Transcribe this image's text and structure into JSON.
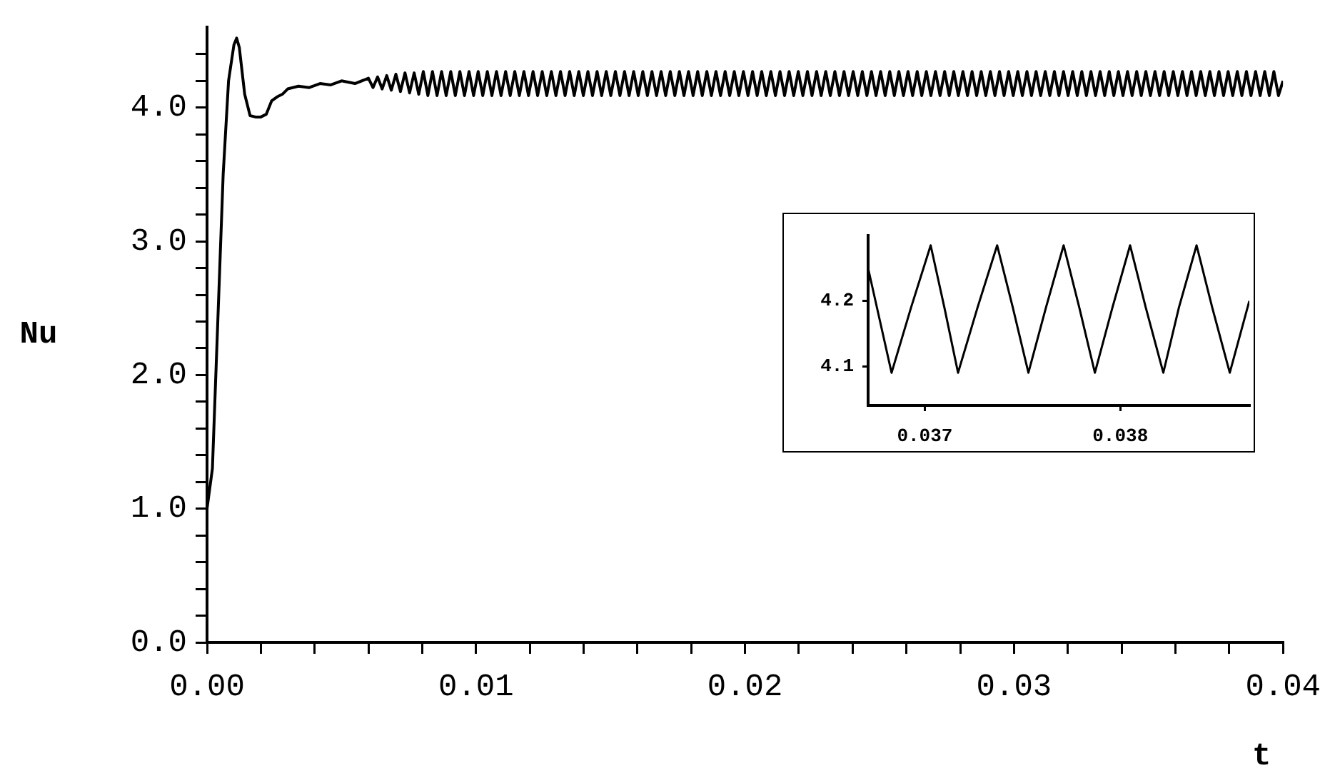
{
  "chart_data": [
    {
      "type": "line",
      "xlabel": "t",
      "ylabel": "Nu",
      "marker": "none",
      "xlim": [
        0,
        0.04
      ],
      "ylim": [
        0,
        4.6
      ],
      "xticks": [
        {
          "value": 0,
          "label": "0.00"
        },
        {
          "value": 0.002,
          "label": null
        },
        {
          "value": 0.004,
          "label": null
        },
        {
          "value": 0.006,
          "label": null
        },
        {
          "value": 0.008,
          "label": null
        },
        {
          "value": 0.01,
          "label": "0.01"
        },
        {
          "value": 0.012,
          "label": null
        },
        {
          "value": 0.014,
          "label": null
        },
        {
          "value": 0.016,
          "label": null
        },
        {
          "value": 0.018,
          "label": null
        },
        {
          "value": 0.02,
          "label": "0.02"
        },
        {
          "value": 0.022,
          "label": null
        },
        {
          "value": 0.024,
          "label": null
        },
        {
          "value": 0.026,
          "label": null
        },
        {
          "value": 0.028,
          "label": null
        },
        {
          "value": 0.03,
          "label": "0.03"
        },
        {
          "value": 0.032,
          "label": null
        },
        {
          "value": 0.034,
          "label": null
        },
        {
          "value": 0.036,
          "label": null
        },
        {
          "value": 0.038,
          "label": null
        },
        {
          "value": 0.04,
          "label": "0.04"
        }
      ],
      "yticks": [
        {
          "value": 0,
          "label": "0.0"
        },
        {
          "value": 0.2,
          "label": null
        },
        {
          "value": 0.4,
          "label": null
        },
        {
          "value": 0.6,
          "label": null
        },
        {
          "value": 0.8,
          "label": null
        },
        {
          "value": 1,
          "label": "1.0"
        },
        {
          "value": 1.2,
          "label": null
        },
        {
          "value": 1.4,
          "label": null
        },
        {
          "value": 1.6,
          "label": null
        },
        {
          "value": 1.8,
          "label": null
        },
        {
          "value": 2,
          "label": "2.0"
        },
        {
          "value": 2.2,
          "label": null
        },
        {
          "value": 2.4,
          "label": null
        },
        {
          "value": 2.6,
          "label": null
        },
        {
          "value": 2.8,
          "label": null
        },
        {
          "value": 3,
          "label": "3.0"
        },
        {
          "value": 3.2,
          "label": null
        },
        {
          "value": 3.4,
          "label": null
        },
        {
          "value": 3.6,
          "label": null
        },
        {
          "value": 3.8,
          "label": null
        },
        {
          "value": 4,
          "label": "4.0"
        },
        {
          "value": 4.2,
          "label": null
        },
        {
          "value": 4.4,
          "label": null
        }
      ],
      "series": [
        {
          "color": "#000000",
          "x": [
            0,
            0.0002,
            0.0004,
            0.0006,
            0.0008,
            0.001,
            0.0011,
            0.0012,
            0.0014,
            0.0016,
            0.0018,
            0.002,
            0.0022,
            0.0024,
            0.0026,
            0.0028,
            0.003,
            0.0034,
            0.0038,
            0.0042,
            0.0046,
            0.005,
            0.0055,
            0.006,
            0.00617,
            0.00634,
            0.00651,
            0.00668,
            0.00685,
            0.00702,
            0.00719,
            0.00736,
            0.00753,
            0.0077,
            0.00787,
            0.00804,
            0.00821,
            0.00838,
            0.00855,
            0.00872,
            0.00889,
            0.00906,
            0.00923,
            0.0094,
            0.00957,
            0.00974,
            0.00991,
            0.01008,
            0.01025,
            0.01042,
            0.01059,
            0.01076,
            0.01093,
            0.0111,
            0.01127,
            0.01144,
            0.01161,
            0.01178,
            0.01195,
            0.01212,
            0.01229,
            0.01246,
            0.01263,
            0.0128,
            0.01297,
            0.01314,
            0.01331,
            0.01348,
            0.01365,
            0.01382,
            0.01399,
            0.01416,
            0.01433,
            0.0145,
            0.01467,
            0.01484,
            0.01501,
            0.01518,
            0.01535,
            0.01552,
            0.01569,
            0.01586,
            0.01603,
            0.0162,
            0.01637,
            0.01654,
            0.01671,
            0.01688,
            0.01705,
            0.01722,
            0.01739,
            0.01756,
            0.01773,
            0.0179,
            0.01807,
            0.01824,
            0.01841,
            0.01858,
            0.01875,
            0.01892,
            0.01909,
            0.01926,
            0.01943,
            0.0196,
            0.01977,
            0.01994,
            0.02011,
            0.02028,
            0.02045,
            0.02062,
            0.02079,
            0.02096,
            0.02113,
            0.0213,
            0.02147,
            0.02164,
            0.02181,
            0.02198,
            0.02215,
            0.02232,
            0.02249,
            0.02266,
            0.02283,
            0.023,
            0.02317,
            0.02334,
            0.02351,
            0.02368,
            0.02385,
            0.02402,
            0.02419,
            0.02436,
            0.02453,
            0.0247,
            0.02487,
            0.02504,
            0.02521,
            0.02538,
            0.02555,
            0.02572,
            0.02589,
            0.02606,
            0.02623,
            0.0264,
            0.02657,
            0.02674,
            0.02691,
            0.02708,
            0.02725,
            0.02742,
            0.02759,
            0.02776,
            0.02793,
            0.0281,
            0.02827,
            0.02844,
            0.02861,
            0.02878,
            0.02895,
            0.02912,
            0.02929,
            0.02946,
            0.02963,
            0.0298,
            0.02997,
            0.03014,
            0.03031,
            0.03048,
            0.03065,
            0.03082,
            0.03099,
            0.03116,
            0.03133,
            0.0315,
            0.03167,
            0.03184,
            0.03201,
            0.03218,
            0.03235,
            0.03252,
            0.03269,
            0.03286,
            0.03303,
            0.0332,
            0.03337,
            0.03354,
            0.03371,
            0.03388,
            0.03405,
            0.03422,
            0.03439,
            0.03456,
            0.03473,
            0.0349,
            0.03507,
            0.03524,
            0.03541,
            0.03558,
            0.03575,
            0.03592,
            0.03609,
            0.03626,
            0.03643,
            0.0366,
            0.03677,
            0.03694,
            0.03711,
            0.03728,
            0.03745,
            0.03762,
            0.03779,
            0.03796,
            0.03813,
            0.0383,
            0.03847,
            0.03864,
            0.03881,
            0.03898,
            0.03915,
            0.03932,
            0.03949,
            0.03966,
            0.03983,
            0.04
          ],
          "values": [
            1.0,
            1.3,
            2.4,
            3.5,
            4.2,
            4.47,
            4.52,
            4.45,
            4.1,
            3.94,
            3.93,
            3.93,
            3.95,
            4.05,
            4.08,
            4.1,
            4.14,
            4.16,
            4.15,
            4.18,
            4.17,
            4.2,
            4.18,
            4.22,
            4.15,
            4.23,
            4.14,
            4.24,
            4.13,
            4.25,
            4.12,
            4.26,
            4.11,
            4.26,
            4.1,
            4.27,
            4.09,
            4.27,
            4.09,
            4.27,
            4.09,
            4.27,
            4.09,
            4.27,
            4.09,
            4.27,
            4.09,
            4.27,
            4.09,
            4.27,
            4.09,
            4.27,
            4.09,
            4.27,
            4.09,
            4.27,
            4.09,
            4.27,
            4.09,
            4.27,
            4.09,
            4.27,
            4.09,
            4.27,
            4.09,
            4.27,
            4.09,
            4.27,
            4.09,
            4.27,
            4.09,
            4.27,
            4.09,
            4.27,
            4.09,
            4.27,
            4.09,
            4.27,
            4.09,
            4.27,
            4.09,
            4.27,
            4.09,
            4.27,
            4.09,
            4.27,
            4.09,
            4.27,
            4.09,
            4.27,
            4.09,
            4.27,
            4.09,
            4.27,
            4.09,
            4.27,
            4.09,
            4.27,
            4.09,
            4.27,
            4.09,
            4.27,
            4.09,
            4.27,
            4.09,
            4.27,
            4.09,
            4.27,
            4.09,
            4.27,
            4.09,
            4.27,
            4.09,
            4.27,
            4.09,
            4.27,
            4.09,
            4.27,
            4.09,
            4.27,
            4.09,
            4.27,
            4.09,
            4.27,
            4.09,
            4.27,
            4.09,
            4.27,
            4.09,
            4.27,
            4.09,
            4.27,
            4.09,
            4.27,
            4.09,
            4.27,
            4.09,
            4.27,
            4.09,
            4.27,
            4.09,
            4.27,
            4.09,
            4.27,
            4.09,
            4.27,
            4.09,
            4.27,
            4.09,
            4.27,
            4.09,
            4.27,
            4.09,
            4.27,
            4.09,
            4.27,
            4.09,
            4.27,
            4.09,
            4.27,
            4.09,
            4.27,
            4.09,
            4.27,
            4.09,
            4.27,
            4.09,
            4.27,
            4.09,
            4.27,
            4.09,
            4.27,
            4.09,
            4.27,
            4.09,
            4.27,
            4.09,
            4.27,
            4.09,
            4.27,
            4.09,
            4.27,
            4.09,
            4.27,
            4.09,
            4.27,
            4.09,
            4.27,
            4.09,
            4.27,
            4.09,
            4.27,
            4.09,
            4.27,
            4.09,
            4.27,
            4.09,
            4.27,
            4.09,
            4.27,
            4.09,
            4.27,
            4.09,
            4.27,
            4.09,
            4.27,
            4.09,
            4.27,
            4.09,
            4.27,
            4.09,
            4.27,
            4.09,
            4.27,
            4.09,
            4.27,
            4.09,
            4.27,
            4.09,
            4.27,
            4.09,
            4.27,
            4.09,
            4.2
          ]
        }
      ]
    },
    {
      "type": "line",
      "marker": "none",
      "xlim": [
        0.03671,
        0.03866
      ],
      "ylim": [
        4.04,
        4.3
      ],
      "xticks": [
        0.037,
        0.038
      ],
      "yticks": [
        4.1,
        4.2
      ],
      "series": [
        {
          "color": "#000000",
          "x": [
            0.03671,
            0.03683,
            0.03693,
            0.03703,
            0.0371,
            0.03717,
            0.03727,
            0.03737,
            0.03745,
            0.03753,
            0.03762,
            0.03771,
            0.03779,
            0.03787,
            0.03796,
            0.03805,
            0.03813,
            0.03822,
            0.0383,
            0.03839,
            0.03847,
            0.03856,
            0.03866
          ],
          "values": [
            4.25,
            4.09,
            4.19,
            4.285,
            4.19,
            4.09,
            4.19,
            4.285,
            4.19,
            4.09,
            4.19,
            4.285,
            4.19,
            4.09,
            4.19,
            4.285,
            4.19,
            4.09,
            4.19,
            4.285,
            4.19,
            4.09,
            4.2
          ]
        }
      ]
    }
  ]
}
